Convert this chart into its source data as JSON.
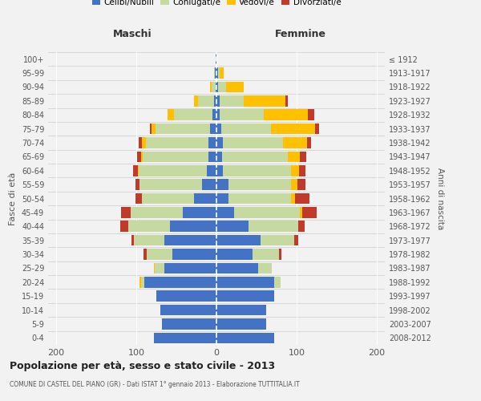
{
  "age_groups": [
    "0-4",
    "5-9",
    "10-14",
    "15-19",
    "20-24",
    "25-29",
    "30-34",
    "35-39",
    "40-44",
    "45-49",
    "50-54",
    "55-59",
    "60-64",
    "65-69",
    "70-74",
    "75-79",
    "80-84",
    "85-89",
    "90-94",
    "95-99",
    "100+"
  ],
  "birth_years": [
    "2008-2012",
    "2003-2007",
    "1998-2002",
    "1993-1997",
    "1988-1992",
    "1983-1987",
    "1978-1982",
    "1973-1977",
    "1968-1972",
    "1963-1967",
    "1958-1962",
    "1953-1957",
    "1948-1952",
    "1943-1947",
    "1938-1942",
    "1933-1937",
    "1928-1932",
    "1923-1927",
    "1918-1922",
    "1913-1917",
    "≤ 1912"
  ],
  "maschi": {
    "celibi": [
      78,
      68,
      70,
      75,
      90,
      65,
      55,
      65,
      58,
      42,
      28,
      18,
      12,
      10,
      10,
      8,
      5,
      3,
      1,
      2,
      1
    ],
    "coniugati": [
      0,
      0,
      0,
      0,
      4,
      12,
      32,
      38,
      52,
      65,
      65,
      78,
      85,
      82,
      78,
      68,
      48,
      20,
      5,
      1,
      0
    ],
    "vedovi": [
      0,
      0,
      0,
      0,
      2,
      1,
      0,
      0,
      0,
      0,
      0,
      0,
      1,
      2,
      5,
      5,
      8,
      5,
      2,
      0,
      0
    ],
    "divorziati": [
      0,
      0,
      0,
      0,
      0,
      0,
      4,
      3,
      10,
      12,
      8,
      5,
      6,
      5,
      4,
      2,
      0,
      0,
      0,
      0,
      0
    ]
  },
  "femmine": {
    "nubili": [
      72,
      62,
      62,
      72,
      72,
      52,
      45,
      55,
      40,
      22,
      15,
      15,
      8,
      7,
      8,
      6,
      4,
      4,
      2,
      2,
      0
    ],
    "coniugate": [
      0,
      0,
      0,
      0,
      8,
      17,
      33,
      42,
      62,
      82,
      78,
      78,
      85,
      82,
      75,
      62,
      55,
      30,
      10,
      2,
      0
    ],
    "vedove": [
      0,
      0,
      0,
      0,
      0,
      0,
      0,
      0,
      0,
      3,
      5,
      8,
      10,
      15,
      30,
      55,
      55,
      52,
      22,
      5,
      0
    ],
    "divorziate": [
      0,
      0,
      0,
      0,
      0,
      0,
      3,
      5,
      8,
      18,
      18,
      10,
      8,
      8,
      5,
      5,
      8,
      3,
      0,
      0,
      0
    ]
  },
  "colors": {
    "celibi_nubili": "#4472c4",
    "coniugati": "#c5d9a0",
    "vedovi": "#ffc000",
    "divorziati": "#c0392b"
  },
  "xlim": 210,
  "xticks": [
    -200,
    -100,
    0,
    100,
    200
  ],
  "title": "Popolazione per età, sesso e stato civile - 2013",
  "subtitle": "COMUNE DI CASTEL DEL PIANO (GR) - Dati ISTAT 1° gennaio 2013 - Elaborazione TUTTITALIA.IT",
  "xlabel_left": "Maschi",
  "xlabel_right": "Femmine",
  "ylabel_left": "Fasce di età",
  "ylabel_right": "Anni di nascita",
  "legend_labels": [
    "Celibi/Nubili",
    "Coniugati/e",
    "Vedovi/e",
    "Divorziati/e"
  ],
  "background_color": "#f2f2f2",
  "bar_height": 0.78
}
